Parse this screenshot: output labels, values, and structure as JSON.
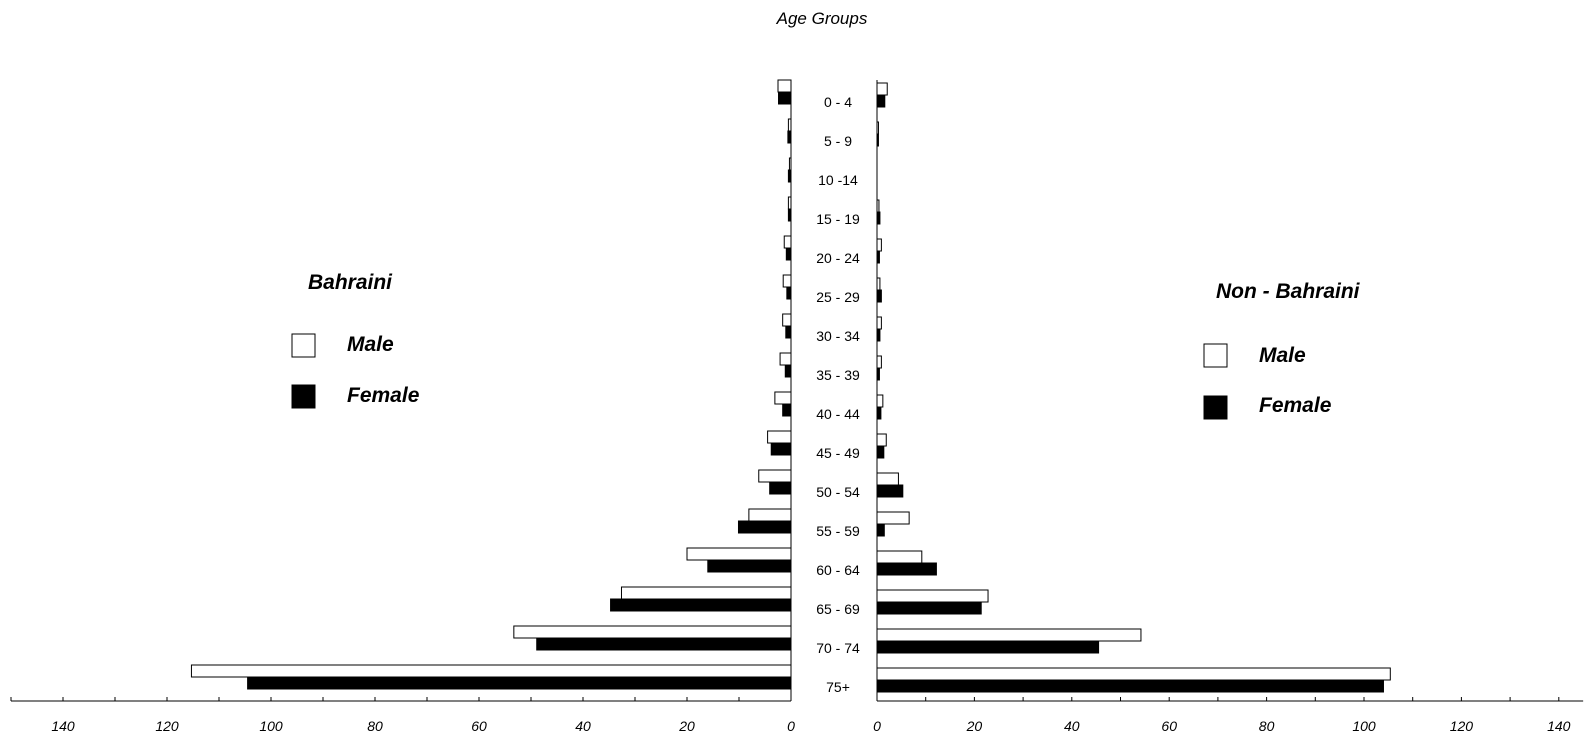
{
  "chart_data": {
    "type": "bar",
    "title": "Age Groups",
    "colors": {
      "male": "#ffffff",
      "female": "#000000",
      "outline": "#000000"
    },
    "categories": [
      "0 - 4",
      "5 - 9",
      "10 -14",
      "15 - 19",
      "20 - 24",
      "25 - 29",
      "30 - 34",
      "35 - 39",
      "40 - 44",
      "45 - 49",
      "50 - 54",
      "55 - 59",
      "60 - 64",
      "65 - 69",
      "70 - 74",
      "75+"
    ],
    "panels": [
      {
        "group": "Bahraini",
        "xlim": [
          0,
          140
        ],
        "ticks": [
          "0",
          "20",
          "40",
          "60",
          "80",
          "100",
          "120",
          "140"
        ],
        "series": [
          {
            "name": "Male",
            "values": [
              2.5,
              0.5,
              0.3,
              0.5,
              1.3,
              1.5,
              1.6,
              2.1,
              3.1,
              4.5,
              6.2,
              8.1,
              20,
              32.6,
              53.3,
              115.3
            ]
          },
          {
            "name": "Female",
            "values": [
              2.4,
              0.6,
              0.5,
              0.5,
              0.9,
              0.8,
              1.0,
              1.1,
              1.6,
              3.8,
              4.1,
              10.1,
              16,
              34.7,
              48.9,
              104.5
            ]
          }
        ]
      },
      {
        "group": "Non - Bahraini",
        "xlim": [
          0,
          140
        ],
        "ticks": [
          "0",
          "20",
          "40",
          "60",
          "80",
          "100",
          "120",
          "140"
        ],
        "series": [
          {
            "name": "Male",
            "values": [
              2.1,
              0.3,
              0,
              0.4,
              0.9,
              0.6,
              0.9,
              0.9,
              1.2,
              1.9,
              4.4,
              6.6,
              9.2,
              22.8,
              54.2,
              105.4
            ]
          },
          {
            "name": "Female",
            "values": [
              1.6,
              0.3,
              0,
              0.6,
              0.5,
              0.9,
              0.6,
              0.5,
              0.8,
              1.4,
              5.3,
              1.5,
              12.2,
              21.4,
              45.5,
              104
            ]
          }
        ]
      }
    ]
  }
}
